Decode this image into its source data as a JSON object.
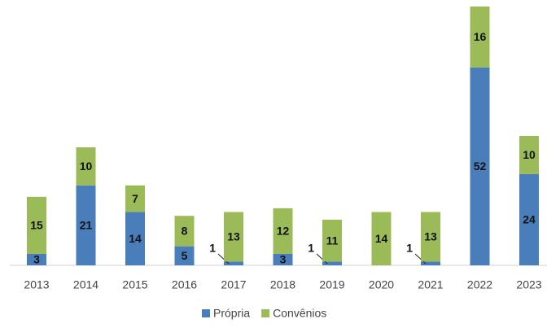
{
  "chart_data": {
    "type": "stacked_bar",
    "categories": [
      "2013",
      "2014",
      "2015",
      "2016",
      "2017",
      "2018",
      "2019",
      "2020",
      "2021",
      "2022",
      "2023"
    ],
    "series": [
      {
        "name": "Própria",
        "color": "#4a7ebb",
        "values": [
          3,
          21,
          14,
          5,
          1,
          3,
          1,
          0,
          1,
          52,
          24
        ]
      },
      {
        "name": "Convênios",
        "color": "#9bbb59",
        "values": [
          15,
          10,
          7,
          8,
          13,
          12,
          11,
          14,
          13,
          16,
          10
        ]
      }
    ],
    "ylim": [
      0,
      68
    ],
    "legend": "bottom"
  }
}
